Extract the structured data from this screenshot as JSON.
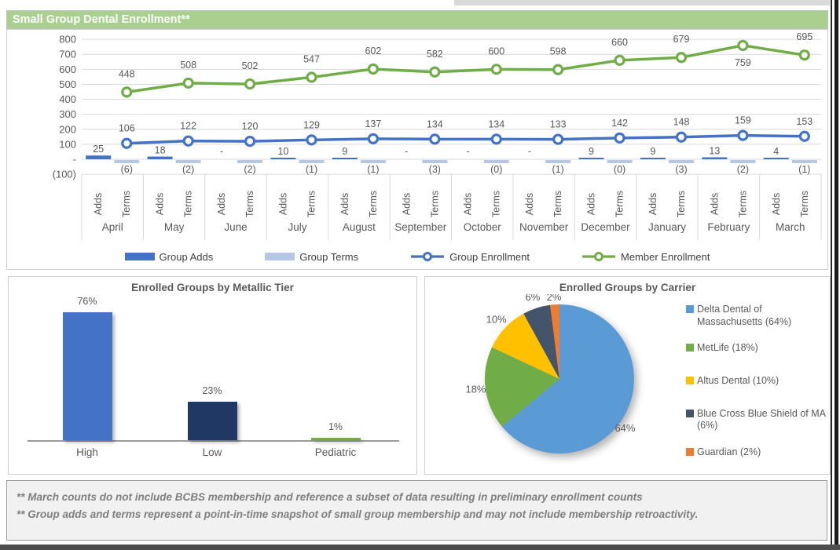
{
  "page": {
    "header_title": "Small Group Dental Enrollment**"
  },
  "chart_data": [
    {
      "type": "combo",
      "title": "Small Group Dental Enrollment**",
      "categories": [
        "April",
        "May",
        "June",
        "July",
        "August",
        "September",
        "October",
        "November",
        "December",
        "January",
        "February",
        "March"
      ],
      "sub_categories": [
        "Adds",
        "Terms"
      ],
      "y_axis": {
        "ticks": [
          "800",
          "700",
          "600",
          "500",
          "400",
          "300",
          "200",
          "100",
          "-",
          "(100)"
        ],
        "min": -100,
        "max": 800,
        "grid": true
      },
      "legend_position": "bottom",
      "series": [
        {
          "name": "Group Adds",
          "type": "bar",
          "color": "#4472C4",
          "values": [
            25,
            18,
            null,
            10,
            9,
            null,
            null,
            null,
            9,
            9,
            13,
            4
          ],
          "labels": [
            "25",
            "18",
            "-",
            "10",
            "9",
            "-",
            "-",
            "-",
            "9",
            "9",
            "13",
            "4"
          ]
        },
        {
          "name": "Group Terms",
          "type": "bar",
          "color": "#B4C7E7",
          "values": [
            -6,
            -2,
            -2,
            -1,
            -1,
            -3,
            0,
            -1,
            0,
            -3,
            -2,
            -1
          ],
          "labels": [
            "(6)",
            "(2)",
            "(2)",
            "(1)",
            "(1)",
            "(3)",
            "(0)",
            "(1)",
            "(0)",
            "(3)",
            "(2)",
            "(1)"
          ]
        },
        {
          "name": "Group Enrollment",
          "type": "line",
          "color": "#4472C4",
          "values": [
            106,
            122,
            120,
            129,
            137,
            134,
            134,
            133,
            142,
            148,
            159,
            153
          ]
        },
        {
          "name": "Member Enrollment",
          "type": "line",
          "color": "#70AD47",
          "values": [
            448,
            508,
            502,
            547,
            602,
            582,
            600,
            598,
            660,
            679,
            759,
            695
          ]
        }
      ]
    },
    {
      "type": "bar",
      "title": "Enrolled Groups by Metallic Tier",
      "categories": [
        "High",
        "Low",
        "Pediatric"
      ],
      "values": [
        76,
        23,
        1
      ],
      "labels": [
        "76%",
        "23%",
        "1%"
      ],
      "colors": [
        "#4472C4",
        "#1F3864",
        "#70AD47"
      ],
      "ylim": [
        0,
        80
      ]
    },
    {
      "type": "pie",
      "title": "Enrolled Groups by Carrier",
      "legend_position": "right",
      "slices": [
        {
          "label": "Delta Dental of Massachusetts (64%)",
          "value": 64,
          "pct": "64%",
          "color": "#5B9BD5"
        },
        {
          "label": "MetLife (18%)",
          "value": 18,
          "pct": "18%",
          "color": "#70AD47"
        },
        {
          "label": "Altus Dental (10%)",
          "value": 10,
          "pct": "10%",
          "color": "#FFC000"
        },
        {
          "label": "Blue Cross Blue Shield of MA (6%)",
          "value": 6,
          "pct": "6%",
          "color": "#44546A"
        },
        {
          "label": "Guardian (2%)",
          "value": 2,
          "pct": "2%",
          "color": "#ED7D31"
        }
      ]
    }
  ],
  "footnotes": [
    "** March counts do not include BCBS membership and reference a subset of data resulting in preliminary enrollment counts",
    "** Group adds and terms represent a point-in-time snapshot of small group membership and may not include membership retroactivity."
  ]
}
